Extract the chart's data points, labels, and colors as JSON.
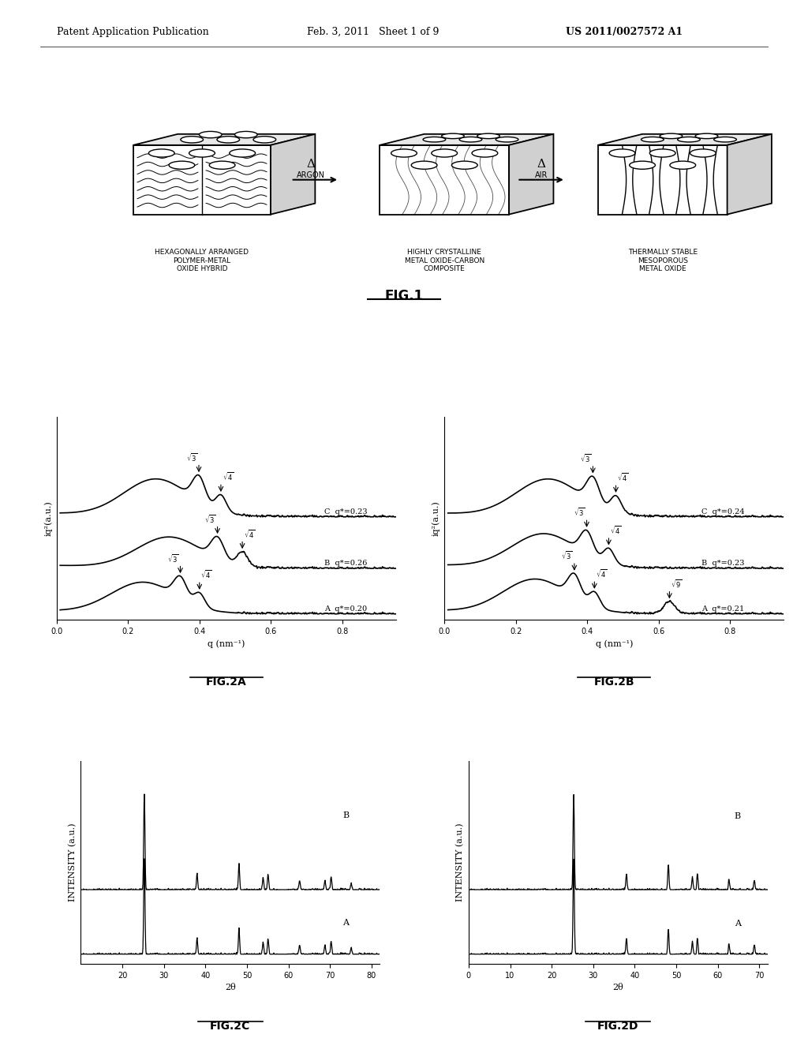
{
  "header_left": "Patent Application Publication",
  "header_mid": "Feb. 3, 2011   Sheet 1 of 9",
  "header_right": "US 2011/0027572 A1",
  "fig1_labels": [
    "HEXAGONALLY ARRANGED\nPOLYMER-METAL\nOXIDE HYBRID",
    "HIGHLY CRYSTALLINE\nMETAL OXIDE-CARBON\nCOMPOSITE",
    "THERMALLY STABLE\nMESOPOROUS\nMETAL OXIDE"
  ],
  "fig1_arrows": [
    "Δ\nARGON",
    "Δ\nAIR"
  ],
  "fig1_title": "FIG.1",
  "fig2a_title": "FIG.2A",
  "fig2b_title": "FIG.2B",
  "fig2c_title": "FIG.2C",
  "fig2d_title": "FIG.2D",
  "fig2a_xlabel": "q (nm⁻¹)",
  "fig2a_ylabel": "iq²(a.u.)",
  "fig2b_xlabel": "q (nm⁻¹)",
  "fig2b_ylabel": "iq²(a.u.)",
  "fig2c_xlabel": "2θ",
  "fig2c_ylabel": "INTENSITY (a.u.)",
  "fig2d_xlabel": "2θ",
  "fig2d_ylabel": "INTENSITY (a.u.)",
  "background_color": "#ffffff"
}
